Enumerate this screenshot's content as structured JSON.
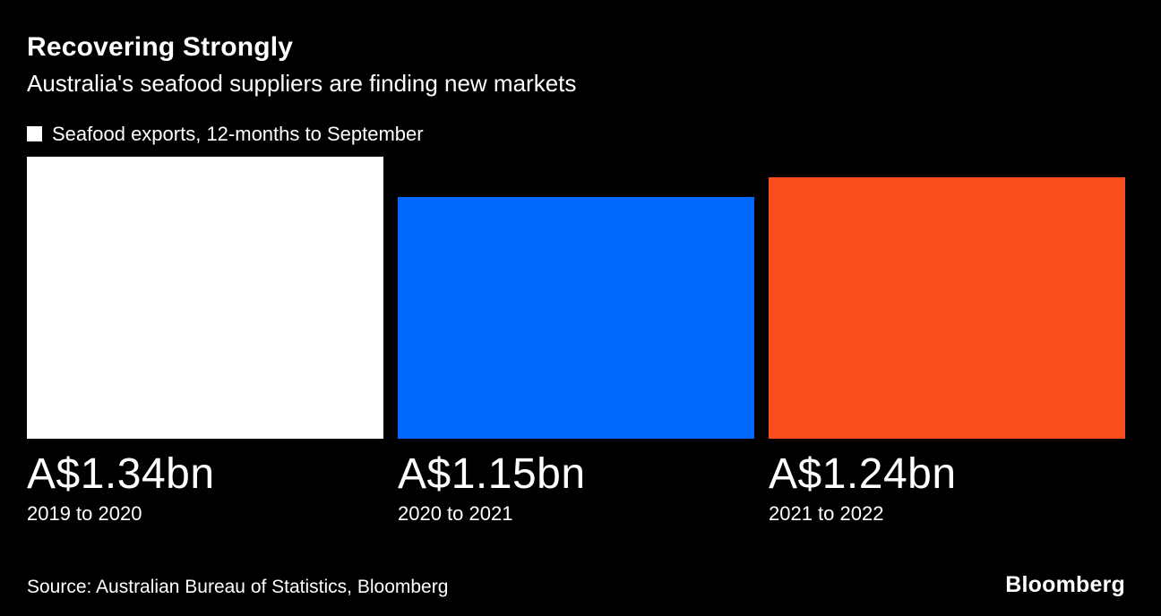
{
  "chart_data": {
    "type": "bar",
    "title": "Recovering Strongly",
    "subtitle": "Australia's seafood suppliers are finding new markets",
    "legend": "Seafood exports, 12-months to September",
    "categories": [
      "2019 to 2020",
      "2020 to 2021",
      "2021 to 2022"
    ],
    "values": [
      1.34,
      1.15,
      1.24
    ],
    "value_labels": [
      "A$1.34bn",
      "A$1.15bn",
      "A$1.24bn"
    ],
    "unit": "A$ billions",
    "bar_colors": [
      "#ffffff",
      "#0068ff",
      "#fa4d1e"
    ],
    "ylim": [
      0,
      1.34
    ],
    "grid": false,
    "legend_position": "top-left"
  },
  "footer": {
    "source": "Source: Australian Bureau of Statistics, Bloomberg",
    "brand": "Bloomberg"
  },
  "colors": {
    "background": "#000000",
    "text": "#ffffff"
  }
}
